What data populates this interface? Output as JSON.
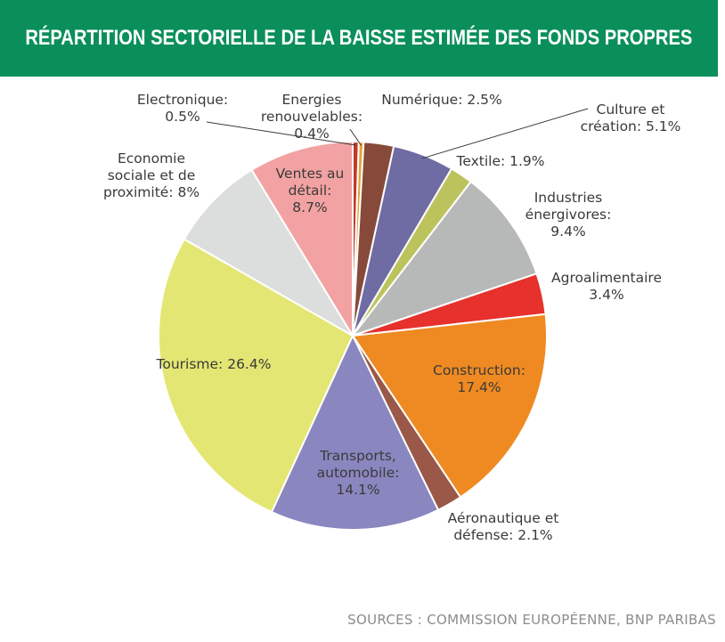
{
  "header": {
    "title": "RÉPARTITION SECTORIELLE DE LA BAISSE ESTIMÉE DES FONDS PROPRES"
  },
  "footer": {
    "source": "SOURCES : COMMISSION EUROPÉENNE, BNP PARIBAS"
  },
  "colors": {
    "header_bg": "#0a8f5a",
    "header_text": "#ffffff"
  },
  "chart_data": {
    "type": "pie",
    "title": "RÉPARTITION SECTORIELLE DE LA BAISSE ESTIMÉE DES FONDS PROPRES",
    "unit": "%",
    "start": "12 o'clock",
    "direction": "clockwise",
    "slices": [
      {
        "label": "Electronique",
        "value": 0.5,
        "color": "#c0392b",
        "label_lines": [
          "Electronique:",
          "0.5%"
        ]
      },
      {
        "label": "Energies renouvelables",
        "value": 0.4,
        "color": "#e8a33a",
        "label_lines": [
          "Energies",
          "renouvelables:",
          "0.4%"
        ]
      },
      {
        "label": "Numérique",
        "value": 2.5,
        "color": "#874a3a",
        "label_lines": [
          "Numérique: 2.5%"
        ]
      },
      {
        "label": "Culture et création",
        "value": 5.1,
        "color": "#6f6ca3",
        "label_lines": [
          "Culture et",
          "création: 5.1%"
        ]
      },
      {
        "label": "Textile",
        "value": 1.9,
        "color": "#bcc35c",
        "label_lines": [
          "Textile: 1.9%"
        ]
      },
      {
        "label": "Industries énergivores",
        "value": 9.4,
        "color": "#b7b9b8",
        "label_lines": [
          "Industries",
          "énergivores:",
          "9.4%"
        ]
      },
      {
        "label": "Agroalimentaire",
        "value": 3.4,
        "color": "#e6312d",
        "label_lines": [
          "Agroalimentaire",
          "3.4%"
        ]
      },
      {
        "label": "Construction",
        "value": 17.4,
        "color": "#ef8a22",
        "label_lines": [
          "Construction:",
          "17.4%"
        ]
      },
      {
        "label": "Aéronautique et défense",
        "value": 2.1,
        "color": "#9a5848",
        "label_lines": [
          "Aéronautique et",
          "défense: 2.1%"
        ]
      },
      {
        "label": "Transports, automobile",
        "value": 14.1,
        "color": "#8a86c0",
        "label_lines": [
          "Transports,",
          "automobile:",
          "14.1%"
        ]
      },
      {
        "label": "Tourisme",
        "value": 26.4,
        "color": "#e3e672",
        "label_lines": [
          "Tourisme: 26.4%"
        ]
      },
      {
        "label": "Economie sociale et de proximité",
        "value": 8,
        "color": "#dcdedd",
        "label_lines": [
          "Economie",
          "sociale et de",
          "proximité: 8%"
        ]
      },
      {
        "label": "Ventes au détail",
        "value": 8.7,
        "color": "#f2a2a2",
        "label_lines": [
          "Ventes au",
          "détail:",
          "8.7%"
        ]
      }
    ]
  }
}
